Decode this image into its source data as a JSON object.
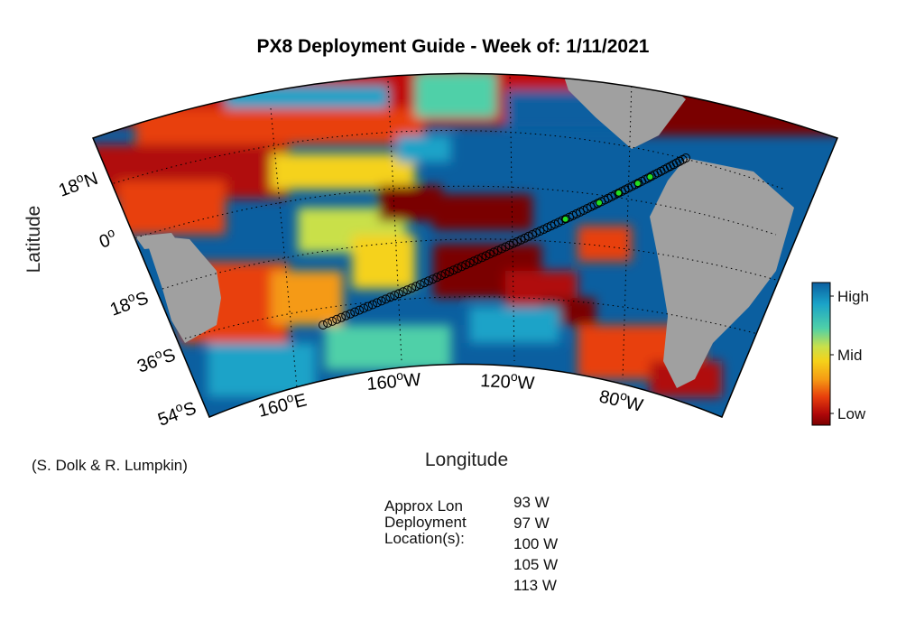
{
  "title": "PX8 Deployment Guide - Week of: 1/11/2021",
  "axes": {
    "ylabel": "Latitude",
    "xlabel": "Longitude",
    "lat_ticks": [
      {
        "sup": "o",
        "pre": "18",
        "post": "N"
      },
      {
        "sup": "o",
        "pre": "0",
        "post": ""
      },
      {
        "sup": "o",
        "pre": "18",
        "post": "S"
      },
      {
        "sup": "o",
        "pre": "36",
        "post": "S"
      },
      {
        "sup": "o",
        "pre": "54",
        "post": "S"
      }
    ],
    "lon_ticks": [
      {
        "sup": "o",
        "pre": "160",
        "post": "E"
      },
      {
        "sup": "o",
        "pre": "160",
        "post": "W"
      },
      {
        "sup": "o",
        "pre": "120",
        "post": "W"
      },
      {
        "sup": "o",
        "pre": "80",
        "post": "W"
      }
    ]
  },
  "colorbar": {
    "labels": [
      "High",
      "Mid",
      "Low"
    ],
    "colors": [
      "#0b5fa0",
      "#1aa3c8",
      "#4fd0a8",
      "#c9e04a",
      "#f5d21a",
      "#f59a14",
      "#e8400c",
      "#b0080a",
      "#7a0000"
    ]
  },
  "credit": "(S. Dolk & R. Lumpkin)",
  "deployment": {
    "label_lines": [
      "Approx Lon",
      "Deployment",
      "Location(s):"
    ],
    "locations": [
      "93 W",
      "97 W",
      "100 W",
      "105 W",
      "113 W"
    ]
  },
  "colors": {
    "land": "#a0a0a0",
    "ocean_low": "#7a0000",
    "ocean_high": "#0b5fa0",
    "track_marker": "#000000",
    "deploy_marker": "#22dd22"
  }
}
